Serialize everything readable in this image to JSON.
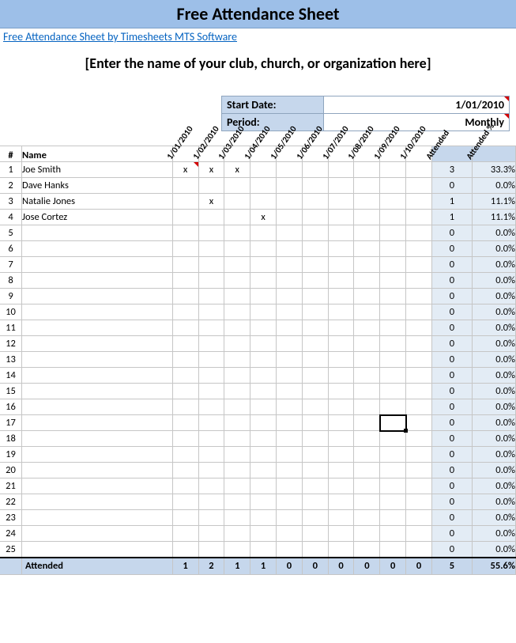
{
  "title": "Free Attendance Sheet",
  "link_text": "Free Attendance Sheet by Timesheets MTS Software",
  "org_placeholder": "[Enter the name of your club, church, or organization here]",
  "meta": {
    "start_date_label": "Start Date:",
    "start_date_value": "1/01/2010",
    "period_label": "Period:",
    "period_value": "Monthly"
  },
  "headers": {
    "idx": "#",
    "name": "Name",
    "dates": [
      "1/01/2010",
      "1/02/2010",
      "1/03/2010",
      "1/04/2010",
      "1/05/2010",
      "1/06/2010",
      "1/07/2010",
      "1/08/2010",
      "1/09/2010",
      "1/10/2010"
    ],
    "attended": "Attended",
    "attended_pct": "Attended %"
  },
  "rows": [
    {
      "n": 1,
      "name": "Joe Smith",
      "marks": [
        "x",
        "x",
        "x",
        "",
        "",
        "",
        "",
        "",
        "",
        ""
      ],
      "att": "3",
      "pct": "33.3%",
      "tri": true
    },
    {
      "n": 2,
      "name": "Dave Hanks",
      "marks": [
        "",
        "",
        "",
        "",
        "",
        "",
        "",
        "",
        "",
        ""
      ],
      "att": "0",
      "pct": "0.0%"
    },
    {
      "n": 3,
      "name": "Natalie Jones",
      "marks": [
        "",
        "x",
        "",
        "",
        "",
        "",
        "",
        "",
        "",
        ""
      ],
      "att": "1",
      "pct": "11.1%"
    },
    {
      "n": 4,
      "name": "Jose Cortez",
      "marks": [
        "",
        "",
        "",
        "x",
        "",
        "",
        "",
        "",
        "",
        ""
      ],
      "att": "1",
      "pct": "11.1%"
    },
    {
      "n": 5,
      "name": "",
      "marks": [
        "",
        "",
        "",
        "",
        "",
        "",
        "",
        "",
        "",
        ""
      ],
      "att": "0",
      "pct": "0.0%"
    },
    {
      "n": 6,
      "name": "",
      "marks": [
        "",
        "",
        "",
        "",
        "",
        "",
        "",
        "",
        "",
        ""
      ],
      "att": "0",
      "pct": "0.0%"
    },
    {
      "n": 7,
      "name": "",
      "marks": [
        "",
        "",
        "",
        "",
        "",
        "",
        "",
        "",
        "",
        ""
      ],
      "att": "0",
      "pct": "0.0%"
    },
    {
      "n": 8,
      "name": "",
      "marks": [
        "",
        "",
        "",
        "",
        "",
        "",
        "",
        "",
        "",
        ""
      ],
      "att": "0",
      "pct": "0.0%"
    },
    {
      "n": 9,
      "name": "",
      "marks": [
        "",
        "",
        "",
        "",
        "",
        "",
        "",
        "",
        "",
        ""
      ],
      "att": "0",
      "pct": "0.0%"
    },
    {
      "n": 10,
      "name": "",
      "marks": [
        "",
        "",
        "",
        "",
        "",
        "",
        "",
        "",
        "",
        ""
      ],
      "att": "0",
      "pct": "0.0%"
    },
    {
      "n": 11,
      "name": "",
      "marks": [
        "",
        "",
        "",
        "",
        "",
        "",
        "",
        "",
        "",
        ""
      ],
      "att": "0",
      "pct": "0.0%"
    },
    {
      "n": 12,
      "name": "",
      "marks": [
        "",
        "",
        "",
        "",
        "",
        "",
        "",
        "",
        "",
        ""
      ],
      "att": "0",
      "pct": "0.0%"
    },
    {
      "n": 13,
      "name": "",
      "marks": [
        "",
        "",
        "",
        "",
        "",
        "",
        "",
        "",
        "",
        ""
      ],
      "att": "0",
      "pct": "0.0%"
    },
    {
      "n": 14,
      "name": "",
      "marks": [
        "",
        "",
        "",
        "",
        "",
        "",
        "",
        "",
        "",
        ""
      ],
      "att": "0",
      "pct": "0.0%"
    },
    {
      "n": 15,
      "name": "",
      "marks": [
        "",
        "",
        "",
        "",
        "",
        "",
        "",
        "",
        "",
        ""
      ],
      "att": "0",
      "pct": "0.0%"
    },
    {
      "n": 16,
      "name": "",
      "marks": [
        "",
        "",
        "",
        "",
        "",
        "",
        "",
        "",
        "",
        ""
      ],
      "att": "0",
      "pct": "0.0%"
    },
    {
      "n": 17,
      "name": "",
      "marks": [
        "",
        "",
        "",
        "",
        "",
        "",
        "",
        "",
        "",
        ""
      ],
      "att": "0",
      "pct": "0.0%",
      "sel_col": 8
    },
    {
      "n": 18,
      "name": "",
      "marks": [
        "",
        "",
        "",
        "",
        "",
        "",
        "",
        "",
        "",
        ""
      ],
      "att": "0",
      "pct": "0.0%"
    },
    {
      "n": 19,
      "name": "",
      "marks": [
        "",
        "",
        "",
        "",
        "",
        "",
        "",
        "",
        "",
        ""
      ],
      "att": "0",
      "pct": "0.0%"
    },
    {
      "n": 20,
      "name": "",
      "marks": [
        "",
        "",
        "",
        "",
        "",
        "",
        "",
        "",
        "",
        ""
      ],
      "att": "0",
      "pct": "0.0%"
    },
    {
      "n": 21,
      "name": "",
      "marks": [
        "",
        "",
        "",
        "",
        "",
        "",
        "",
        "",
        "",
        ""
      ],
      "att": "0",
      "pct": "0.0%"
    },
    {
      "n": 22,
      "name": "",
      "marks": [
        "",
        "",
        "",
        "",
        "",
        "",
        "",
        "",
        "",
        ""
      ],
      "att": "0",
      "pct": "0.0%"
    },
    {
      "n": 23,
      "name": "",
      "marks": [
        "",
        "",
        "",
        "",
        "",
        "",
        "",
        "",
        "",
        ""
      ],
      "att": "0",
      "pct": "0.0%"
    },
    {
      "n": 24,
      "name": "",
      "marks": [
        "",
        "",
        "",
        "",
        "",
        "",
        "",
        "",
        "",
        ""
      ],
      "att": "0",
      "pct": "0.0%"
    },
    {
      "n": 25,
      "name": "",
      "marks": [
        "",
        "",
        "",
        "",
        "",
        "",
        "",
        "",
        "",
        ""
      ],
      "att": "0",
      "pct": "0.0%"
    }
  ],
  "footer": {
    "label": "Attended",
    "totals": [
      "1",
      "2",
      "1",
      "1",
      "0",
      "0",
      "0",
      "0",
      "0",
      "0"
    ],
    "att": "5",
    "pct": "55.6%"
  },
  "style": {
    "header_bg": "#9dbfe8",
    "shade_bg": "#c6d7ec",
    "border": "#c6c6c6",
    "link_color": "#0563c1"
  }
}
